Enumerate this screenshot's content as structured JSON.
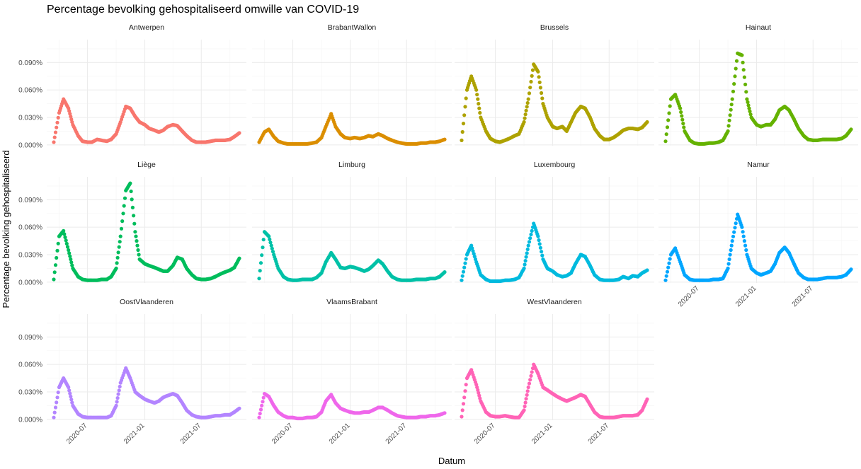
{
  "chart_data": {
    "type": "scatter",
    "title": "Percentage bevolking gehospitaliseerd omwille van COVID-19",
    "xlabel": "Datum",
    "ylabel": "Percentage bevolking gehospitaliseerd",
    "x_range": [
      "2020-03-15",
      "2021-10-31"
    ],
    "x_ticks": [
      "2020-07-01",
      "2021-01-01",
      "2021-07-01"
    ],
    "x_tick_labels": [
      "2020-07",
      "2021-01",
      "2021-07"
    ],
    "ylim": [
      -0.0009,
      0.115
    ],
    "y_ticks": [
      0.0,
      0.03,
      0.06,
      0.09
    ],
    "y_tick_labels": [
      "0.000%",
      "0.030%",
      "0.060%",
      "0.090%"
    ],
    "grid": true,
    "legend": "none",
    "facets": {
      "ncol": 4,
      "nrow": 3
    },
    "x": [
      "2020-03-15",
      "2020-04-01",
      "2020-04-15",
      "2020-05-01",
      "2020-05-15",
      "2020-06-01",
      "2020-06-15",
      "2020-07-01",
      "2020-07-15",
      "2020-08-01",
      "2020-08-15",
      "2020-09-01",
      "2020-09-15",
      "2020-10-01",
      "2020-10-15",
      "2020-11-01",
      "2020-11-15",
      "2020-12-01",
      "2020-12-15",
      "2021-01-01",
      "2021-01-15",
      "2021-02-01",
      "2021-02-15",
      "2021-03-01",
      "2021-03-15",
      "2021-04-01",
      "2021-04-15",
      "2021-05-01",
      "2021-05-15",
      "2021-06-01",
      "2021-06-15",
      "2021-07-01",
      "2021-07-15",
      "2021-08-01",
      "2021-08-15",
      "2021-09-01",
      "2021-09-15",
      "2021-10-01",
      "2021-10-15",
      "2021-10-31"
    ],
    "series": [
      {
        "name": "Antwerpen",
        "color": "#F8766D",
        "values": [
          0.003,
          0.035,
          0.05,
          0.04,
          0.022,
          0.01,
          0.004,
          0.003,
          0.003,
          0.006,
          0.005,
          0.004,
          0.006,
          0.012,
          0.025,
          0.042,
          0.04,
          0.031,
          0.025,
          0.022,
          0.018,
          0.016,
          0.014,
          0.016,
          0.02,
          0.022,
          0.021,
          0.015,
          0.01,
          0.005,
          0.003,
          0.003,
          0.003,
          0.004,
          0.005,
          0.005,
          0.005,
          0.006,
          0.009,
          0.013
        ]
      },
      {
        "name": "BrabantWallon",
        "color": "#DB8E00",
        "values": [
          0.003,
          0.014,
          0.017,
          0.009,
          0.004,
          0.002,
          0.001,
          0.001,
          0.001,
          0.001,
          0.001,
          0.002,
          0.003,
          0.008,
          0.02,
          0.034,
          0.02,
          0.012,
          0.008,
          0.007,
          0.008,
          0.007,
          0.008,
          0.01,
          0.009,
          0.012,
          0.01,
          0.007,
          0.005,
          0.003,
          0.002,
          0.001,
          0.001,
          0.001,
          0.002,
          0.002,
          0.003,
          0.003,
          0.004,
          0.006
        ]
      },
      {
        "name": "Brussels",
        "color": "#AEA200",
        "values": [
          0.005,
          0.06,
          0.075,
          0.06,
          0.03,
          0.015,
          0.007,
          0.004,
          0.003,
          0.005,
          0.007,
          0.01,
          0.012,
          0.025,
          0.05,
          0.088,
          0.08,
          0.045,
          0.03,
          0.02,
          0.018,
          0.02,
          0.015,
          0.025,
          0.035,
          0.042,
          0.04,
          0.03,
          0.018,
          0.01,
          0.006,
          0.006,
          0.008,
          0.012,
          0.016,
          0.018,
          0.018,
          0.017,
          0.019,
          0.025
        ]
      },
      {
        "name": "Hainaut",
        "color": "#64B200",
        "values": [
          0.004,
          0.05,
          0.055,
          0.04,
          0.015,
          0.005,
          0.002,
          0.001,
          0.001,
          0.002,
          0.002,
          0.003,
          0.005,
          0.015,
          0.05,
          0.1,
          0.098,
          0.05,
          0.03,
          0.022,
          0.02,
          0.022,
          0.022,
          0.028,
          0.038,
          0.042,
          0.038,
          0.028,
          0.018,
          0.01,
          0.006,
          0.005,
          0.005,
          0.006,
          0.006,
          0.006,
          0.006,
          0.007,
          0.01,
          0.017
        ]
      },
      {
        "name": "Liège",
        "color": "#00BD5C",
        "values": [
          0.003,
          0.05,
          0.056,
          0.035,
          0.015,
          0.006,
          0.003,
          0.002,
          0.002,
          0.002,
          0.003,
          0.003,
          0.006,
          0.015,
          0.05,
          0.1,
          0.108,
          0.055,
          0.025,
          0.02,
          0.018,
          0.016,
          0.014,
          0.012,
          0.012,
          0.018,
          0.027,
          0.025,
          0.015,
          0.008,
          0.004,
          0.003,
          0.003,
          0.004,
          0.006,
          0.009,
          0.011,
          0.013,
          0.016,
          0.026
        ]
      },
      {
        "name": "Limburg",
        "color": "#00C1A7",
        "values": [
          0.004,
          0.055,
          0.05,
          0.03,
          0.015,
          0.006,
          0.003,
          0.002,
          0.002,
          0.003,
          0.003,
          0.003,
          0.005,
          0.01,
          0.022,
          0.032,
          0.025,
          0.016,
          0.015,
          0.017,
          0.016,
          0.014,
          0.012,
          0.014,
          0.018,
          0.024,
          0.02,
          0.012,
          0.006,
          0.003,
          0.002,
          0.002,
          0.002,
          0.003,
          0.003,
          0.003,
          0.004,
          0.004,
          0.006,
          0.011
        ]
      },
      {
        "name": "Luxembourg",
        "color": "#00BADE",
        "values": [
          0.002,
          0.03,
          0.04,
          0.022,
          0.008,
          0.003,
          0.001,
          0.001,
          0.001,
          0.002,
          0.002,
          0.003,
          0.005,
          0.015,
          0.04,
          0.064,
          0.05,
          0.025,
          0.015,
          0.012,
          0.008,
          0.006,
          0.007,
          0.01,
          0.02,
          0.03,
          0.028,
          0.018,
          0.008,
          0.003,
          0.002,
          0.002,
          0.002,
          0.003,
          0.006,
          0.004,
          0.007,
          0.006,
          0.01,
          0.013
        ]
      },
      {
        "name": "Namur",
        "color": "#00A6FF",
        "values": [
          0.002,
          0.03,
          0.037,
          0.022,
          0.008,
          0.003,
          0.002,
          0.002,
          0.002,
          0.002,
          0.003,
          0.003,
          0.004,
          0.015,
          0.045,
          0.074,
          0.06,
          0.03,
          0.015,
          0.01,
          0.008,
          0.01,
          0.012,
          0.02,
          0.032,
          0.038,
          0.032,
          0.02,
          0.01,
          0.005,
          0.003,
          0.003,
          0.003,
          0.004,
          0.005,
          0.005,
          0.005,
          0.006,
          0.008,
          0.014
        ]
      },
      {
        "name": "OostVlaanderen",
        "color": "#B385FF",
        "values": [
          0.002,
          0.035,
          0.045,
          0.035,
          0.015,
          0.006,
          0.003,
          0.002,
          0.002,
          0.002,
          0.002,
          0.002,
          0.004,
          0.015,
          0.04,
          0.056,
          0.045,
          0.03,
          0.026,
          0.022,
          0.02,
          0.018,
          0.02,
          0.024,
          0.026,
          0.028,
          0.026,
          0.018,
          0.01,
          0.005,
          0.003,
          0.002,
          0.002,
          0.003,
          0.004,
          0.004,
          0.005,
          0.005,
          0.008,
          0.012
        ]
      },
      {
        "name": "VlaamsBrabant",
        "color": "#EF67EB",
        "values": [
          0.002,
          0.028,
          0.025,
          0.015,
          0.008,
          0.004,
          0.002,
          0.002,
          0.001,
          0.001,
          0.002,
          0.002,
          0.003,
          0.008,
          0.02,
          0.027,
          0.018,
          0.012,
          0.01,
          0.008,
          0.007,
          0.007,
          0.008,
          0.008,
          0.01,
          0.013,
          0.013,
          0.01,
          0.007,
          0.004,
          0.003,
          0.002,
          0.002,
          0.002,
          0.003,
          0.003,
          0.004,
          0.004,
          0.005,
          0.007
        ]
      },
      {
        "name": "WestVlaanderen",
        "color": "#FF63B6",
        "values": [
          0.003,
          0.045,
          0.054,
          0.038,
          0.02,
          0.008,
          0.004,
          0.003,
          0.003,
          0.004,
          0.003,
          0.002,
          0.002,
          0.01,
          0.035,
          0.06,
          0.05,
          0.035,
          0.032,
          0.028,
          0.025,
          0.022,
          0.02,
          0.022,
          0.024,
          0.027,
          0.025,
          0.016,
          0.008,
          0.003,
          0.002,
          0.002,
          0.002,
          0.003,
          0.004,
          0.004,
          0.004,
          0.005,
          0.01,
          0.022
        ]
      }
    ]
  }
}
